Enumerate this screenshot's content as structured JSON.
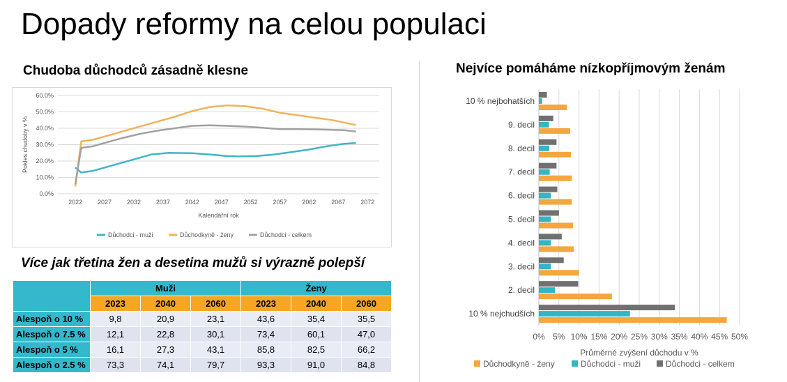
{
  "page": {
    "title": "Dopady reformy na celou populaci",
    "left_subtitle": "Chudoba důchodců zásadně klesne",
    "right_subtitle": "Nejvíce pomáháme nízkopříjmovým ženám",
    "table_caption": "Více jak třetina žen a desetina mužů si výrazně polepší"
  },
  "chart_data": [
    {
      "type": "line",
      "title": "",
      "xlabel": "Kalendářní rok",
      "ylabel": "Pokles chudoby v %",
      "x_ticks": [
        "2022",
        "2027",
        "2032",
        "2037",
        "2042",
        "2047",
        "2052",
        "2057",
        "2062",
        "2067",
        "2072"
      ],
      "y_ticks": [
        "0.0%",
        "10.0%",
        "20.0%",
        "30.0%",
        "40.0%",
        "50.0%",
        "60.0%"
      ],
      "xlim": [
        2019,
        2074
      ],
      "ylim": [
        0,
        60
      ],
      "grid": true,
      "legend": "bottom",
      "series": [
        {
          "name": "Důchodci - muži",
          "color": "#3fb5c8",
          "points": [
            [
              2022,
              16
            ],
            [
              2023,
              13
            ],
            [
              2025,
              14
            ],
            [
              2027,
              16
            ],
            [
              2030,
              19
            ],
            [
              2032,
              21
            ],
            [
              2035,
              24
            ],
            [
              2038,
              25
            ],
            [
              2042,
              24.8
            ],
            [
              2045,
              24
            ],
            [
              2048,
              23
            ],
            [
              2050,
              22.8
            ],
            [
              2053,
              23
            ],
            [
              2056,
              24
            ],
            [
              2059,
              25.5
            ],
            [
              2062,
              27
            ],
            [
              2065,
              29
            ],
            [
              2068,
              30.5
            ],
            [
              2070,
              31
            ]
          ]
        },
        {
          "name": "Důchodkyně - ženy",
          "color": "#f2b25b",
          "points": [
            [
              2022,
              4.5
            ],
            [
              2023,
              32
            ],
            [
              2025,
              33
            ],
            [
              2027,
              35
            ],
            [
              2030,
              38
            ],
            [
              2033,
              41
            ],
            [
              2036,
              44
            ],
            [
              2039,
              47
            ],
            [
              2042,
              50.5
            ],
            [
              2045,
              53
            ],
            [
              2048,
              54
            ],
            [
              2051,
              53.5
            ],
            [
              2054,
              52
            ],
            [
              2057,
              49.5
            ],
            [
              2060,
              48
            ],
            [
              2063,
              46.5
            ],
            [
              2066,
              45
            ],
            [
              2068,
              43.5
            ],
            [
              2070,
              42
            ]
          ]
        },
        {
          "name": "Důchodci - celkem",
          "color": "#a0a0a0",
          "points": [
            [
              2022,
              6
            ],
            [
              2023,
              28
            ],
            [
              2025,
              29
            ],
            [
              2027,
              31
            ],
            [
              2030,
              34
            ],
            [
              2033,
              36.5
            ],
            [
              2036,
              38.5
            ],
            [
              2039,
              40
            ],
            [
              2042,
              41.5
            ],
            [
              2045,
              41.8
            ],
            [
              2048,
              41.5
            ],
            [
              2051,
              41
            ],
            [
              2054,
              40.3
            ],
            [
              2057,
              39.5
            ],
            [
              2060,
              39.5
            ],
            [
              2063,
              39.3
            ],
            [
              2066,
              39
            ],
            [
              2068,
              38.8
            ],
            [
              2070,
              38
            ]
          ]
        }
      ]
    },
    {
      "type": "bar",
      "orientation": "horizontal",
      "xlabel": "Průměrné zvýšení důchodu v %",
      "x_ticks": [
        "0%",
        "5%",
        "10%",
        "15%",
        "20%",
        "25%",
        "30%",
        "35%",
        "40%",
        "45%",
        "50%"
      ],
      "xlim": [
        0,
        50
      ],
      "grid": true,
      "legend": "bottom",
      "categories": [
        "10 % nejbohatších",
        "9. decil",
        "8. decil",
        "7. decil",
        "6. decil",
        "5. decil",
        "4. decil",
        "3. decil",
        "2. decil",
        "10 % nejchudších"
      ],
      "series": [
        {
          "name": "Důchodkyně - ženy",
          "color": "#f5a63c",
          "values": [
            7.0,
            7.8,
            8.0,
            8.2,
            8.2,
            8.5,
            8.7,
            10.0,
            18.2,
            46.8
          ]
        },
        {
          "name": "Důchodci - muži",
          "color": "#33b5c6",
          "values": [
            0.8,
            2.5,
            2.6,
            2.7,
            3.0,
            3.0,
            3.0,
            3.0,
            4.0,
            22.7
          ]
        },
        {
          "name": "Důchodci - celkem",
          "color": "#707070",
          "values": [
            2.0,
            3.6,
            4.4,
            4.4,
            4.6,
            5.0,
            5.7,
            6.2,
            9.8,
            33.9
          ]
        }
      ]
    }
  ],
  "table": {
    "groups": [
      "Muži",
      "Ženy"
    ],
    "years": [
      "2023",
      "2040",
      "2060",
      "2023",
      "2040",
      "2060"
    ],
    "rows": [
      {
        "label": "Alespoň o 10 %",
        "values": [
          "9,8",
          "20,9",
          "23,1",
          "43,6",
          "35,4",
          "35,5"
        ]
      },
      {
        "label": "Alespoň o 7.5 %",
        "values": [
          "12,1",
          "22,8",
          "30,1",
          "73,4",
          "60,1",
          "47,0"
        ]
      },
      {
        "label": "Alespoň o 5 %",
        "values": [
          "16,1",
          "27,3",
          "43,1",
          "85,8",
          "82,5",
          "66,2"
        ]
      },
      {
        "label": "Alespoň o 2.5 %",
        "values": [
          "73,3",
          "74,1",
          "79,7",
          "93,3",
          "91,0",
          "84,8"
        ]
      }
    ],
    "colors": {
      "header": "#33b8cc",
      "year": "#f5a623",
      "cell": "#e9ecf5"
    }
  }
}
